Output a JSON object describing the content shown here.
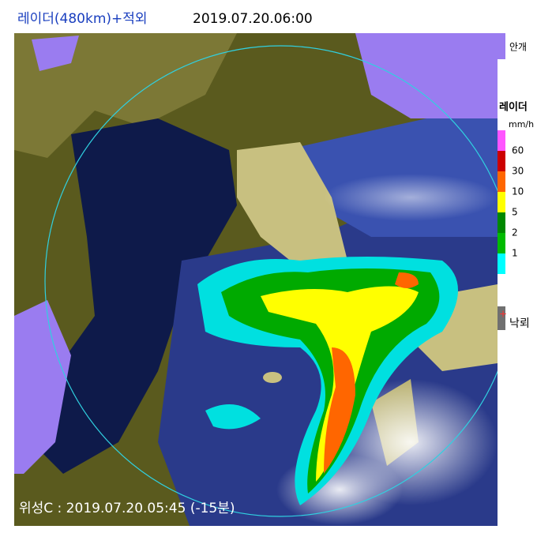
{
  "header": {
    "title": "레이더(480km)+적외",
    "time": "2019.07.20.06:00"
  },
  "legend": {
    "fog": {
      "label": "안개",
      "color": "#9a7cf0"
    },
    "radar": {
      "title": "레이더",
      "unit": "mm/h",
      "colors": [
        "#ff55ff",
        "#cc0000",
        "#ff6600",
        "#ffff00",
        "#008800",
        "#00bb00",
        "#00ffff"
      ],
      "levels": [
        60,
        30,
        10,
        5,
        2,
        1
      ]
    },
    "lightning": {
      "label": "낙뢰",
      "color": "#707070"
    }
  },
  "footer": {
    "satellite": "위성C : 2019.07.20.05:45 (-15분)"
  }
}
